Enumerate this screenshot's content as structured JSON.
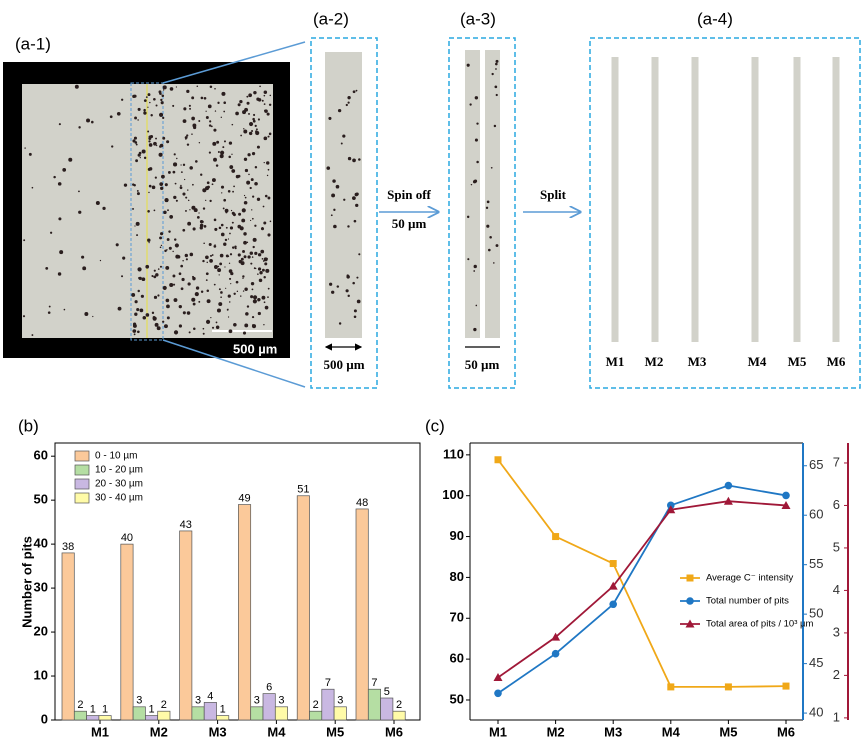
{
  "figure": {
    "a1_label": "(a-1)",
    "a1_scale": "500 µm",
    "a2_label": "(a-2)",
    "a2_scale": "500 µm",
    "step1": "Spin off",
    "step1_sub": "50 µm",
    "a3_label": "(a-3)",
    "a3_scale": "50 µm",
    "step2": "Split",
    "a4_label": "(a-4)",
    "strips": [
      "M1",
      "M2",
      "M3",
      "M4",
      "M5",
      "M6"
    ],
    "b_label": "(b)",
    "c_label": "(c)"
  },
  "chart_data": [
    {
      "type": "bar",
      "ylabel": "Number of pits",
      "categories": [
        "M1",
        "M2",
        "M3",
        "M4",
        "M5",
        "M6"
      ],
      "series": [
        {
          "name": "0 - 10 µm",
          "color": "#fbc99a",
          "values": [
            38,
            40,
            43,
            49,
            51,
            48
          ]
        },
        {
          "name": "10 - 20 µm",
          "color": "#b5dea3",
          "values": [
            2,
            3,
            3,
            3,
            2,
            7
          ]
        },
        {
          "name": "20 - 30 µm",
          "color": "#c9b8e2",
          "values": [
            1,
            1,
            4,
            6,
            7,
            5
          ]
        },
        {
          "name": "30 - 40 µm",
          "color": "#fffba8",
          "values": [
            1,
            2,
            1,
            3,
            3,
            2
          ]
        }
      ],
      "ylim": [
        0,
        63
      ],
      "yticks": [
        0,
        10,
        20,
        30,
        40,
        50,
        60
      ],
      "legend": "upper left"
    },
    {
      "type": "line",
      "categories": [
        "M1",
        "M2",
        "M3",
        "M4",
        "M5",
        "M6"
      ],
      "series": [
        {
          "name": "Average C⁻ intensity",
          "color": "#f0a818",
          "marker": "square",
          "axis": "y",
          "values": [
            108.8,
            90,
            83.4,
            53.2,
            53.2,
            53.4
          ]
        },
        {
          "name": "Total number of pits",
          "color": "#1f77c4",
          "marker": "circle",
          "axis": "y2",
          "values": [
            42,
            46,
            51,
            61,
            63,
            62
          ]
        },
        {
          "name": "Total area of pits / 10³ µm",
          "color": "#a01838",
          "marker": "triangle",
          "axis": "y3",
          "values": [
            1.95,
            2.9,
            4.1,
            5.9,
            6.1,
            6.0
          ]
        }
      ],
      "ylim": [
        45.1,
        112.9
      ],
      "yticks": [
        50,
        60,
        70,
        80,
        90,
        100,
        110
      ],
      "y2lim": [
        39.3,
        67.3
      ],
      "y2ticks": [
        40,
        45,
        50,
        55,
        60,
        65
      ],
      "y3lim": [
        0.95,
        7.47
      ],
      "y3ticks": [
        1,
        2,
        3,
        4,
        5,
        6,
        7
      ],
      "legend": "center right"
    }
  ]
}
